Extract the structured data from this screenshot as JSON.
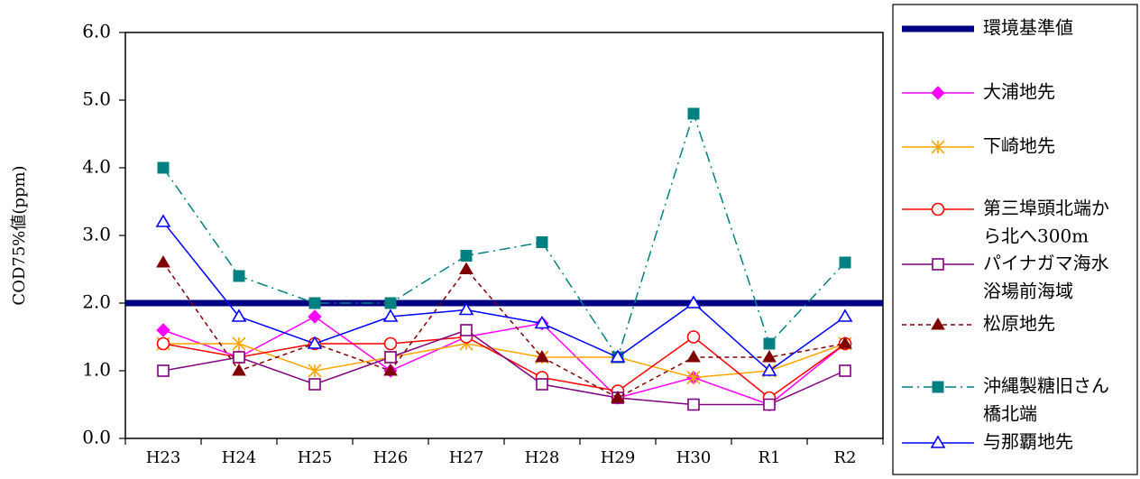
{
  "chart_data": {
    "type": "line",
    "title": "",
    "xlabel": "",
    "ylabel": "COD75%値(ppm)",
    "ylim": [
      0,
      6
    ],
    "yticks": [
      "0.0",
      "1.0",
      "2.0",
      "3.0",
      "4.0",
      "5.0",
      "6.0"
    ],
    "categories": [
      "H23",
      "H24",
      "H25",
      "H26",
      "H27",
      "H28",
      "H29",
      "H30",
      "R1",
      "R2"
    ],
    "grid": false,
    "legend_position": "right",
    "series": [
      {
        "name": "環境基準値",
        "legend_lines": [
          "環境基準値"
        ],
        "color": "#000080",
        "marker": "none",
        "dash": "solid",
        "thick": true,
        "values": [
          2.0,
          2.0,
          2.0,
          2.0,
          2.0,
          2.0,
          2.0,
          2.0,
          2.0,
          2.0
        ]
      },
      {
        "name": "大浦地先",
        "legend_lines": [
          "大浦地先"
        ],
        "color": "#ff00ff",
        "marker": "diamond",
        "dash": "solid",
        "values": [
          1.6,
          1.2,
          1.8,
          1.0,
          1.5,
          1.7,
          0.6,
          0.9,
          0.5,
          1.4
        ]
      },
      {
        "name": "下崎地先",
        "legend_lines": [
          "下崎地先"
        ],
        "color": "#ffa500",
        "marker": "asterisk",
        "dash": "solid",
        "values": [
          1.4,
          1.4,
          1.0,
          1.2,
          1.4,
          1.2,
          1.2,
          0.9,
          1.0,
          1.4
        ]
      },
      {
        "name": "第三埠頭北端から北へ300m",
        "legend_lines": [
          "第三埠頭北端か",
          "ら北へ300m"
        ],
        "color": "#ff0000",
        "marker": "circle",
        "dash": "solid",
        "values": [
          1.4,
          1.2,
          1.4,
          1.4,
          1.5,
          0.9,
          0.7,
          1.5,
          0.6,
          1.4
        ]
      },
      {
        "name": "パイナガマ海水浴場前海域",
        "legend_lines": [
          "パイナガマ海水",
          "浴場前海域"
        ],
        "color": "#800080",
        "marker": "square",
        "dash": "solid",
        "values": [
          1.0,
          1.2,
          0.8,
          1.2,
          1.6,
          0.8,
          0.6,
          0.5,
          0.5,
          1.0
        ]
      },
      {
        "name": "松原地先",
        "legend_lines": [
          "松原地先"
        ],
        "color": "#800000",
        "marker": "triangle-filled",
        "dash": "dashed",
        "values": [
          2.6,
          1.0,
          1.4,
          1.0,
          2.5,
          1.2,
          0.6,
          1.2,
          1.2,
          1.4
        ]
      },
      {
        "name": "沖縄製糖旧さん橋北端",
        "legend_lines": [
          "沖縄製糖旧さん",
          "橋北端"
        ],
        "color": "#008080",
        "marker": "square-filled",
        "dash": "dashdot",
        "values": [
          4.0,
          2.4,
          2.0,
          2.0,
          2.7,
          2.9,
          1.2,
          4.8,
          1.4,
          2.6
        ]
      },
      {
        "name": "与那覇地先",
        "legend_lines": [
          "与那覇地先"
        ],
        "color": "#0000ff",
        "marker": "triangle",
        "dash": "solid",
        "values": [
          3.2,
          1.8,
          1.4,
          1.8,
          1.9,
          1.7,
          1.2,
          2.0,
          1.0,
          1.8
        ]
      }
    ]
  }
}
